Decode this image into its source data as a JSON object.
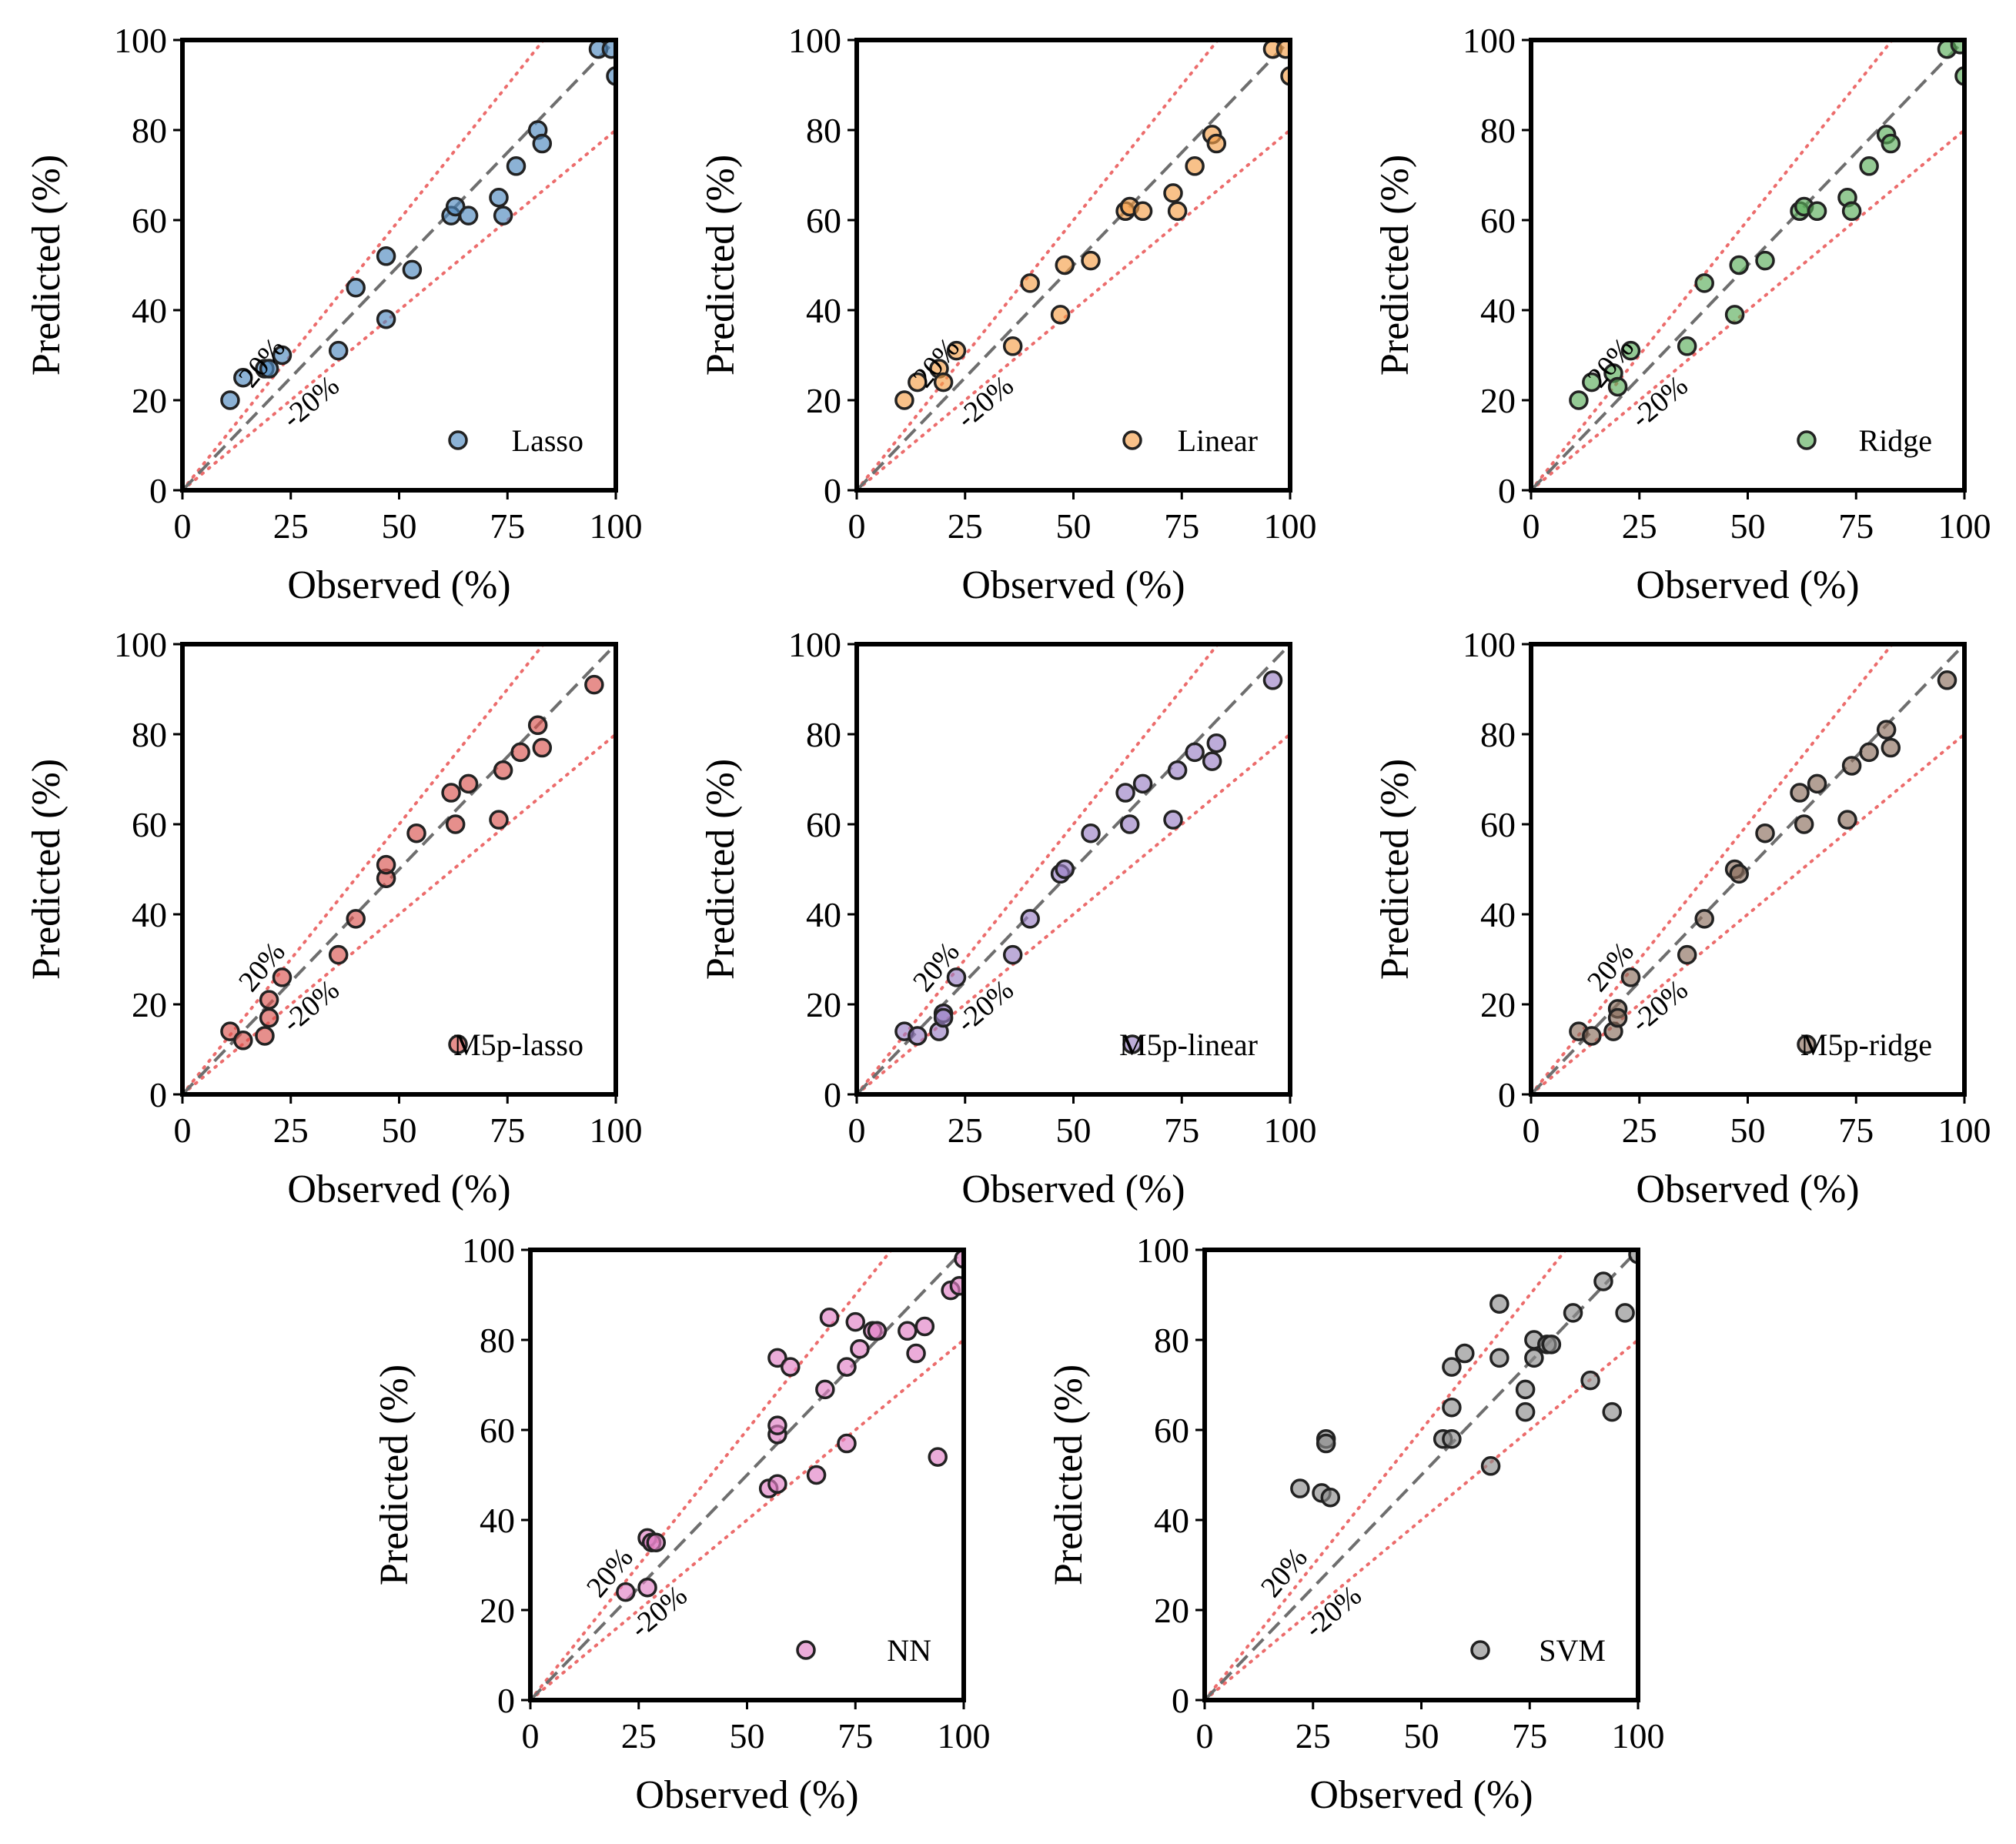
{
  "chart_data": [
    {
      "type": "scatter",
      "model": "Lasso",
      "color": "#4e89bf",
      "xlabel": "Observed (%)",
      "ylabel": "Predicted (%)",
      "xlim": [
        0,
        100
      ],
      "ylim": [
        0,
        100
      ],
      "x_ticks": [
        "0",
        "25",
        "50",
        "75",
        "100"
      ],
      "y_ticks": [
        "0",
        "20",
        "40",
        "60",
        "80",
        "100"
      ],
      "legend": "Lasso",
      "legend_location": "bottom-right",
      "band_labels": [
        "20%",
        "-20%"
      ],
      "points": [
        [
          11,
          20
        ],
        [
          14,
          25
        ],
        [
          19,
          27
        ],
        [
          20,
          27
        ],
        [
          23,
          30
        ],
        [
          36,
          31
        ],
        [
          40,
          45
        ],
        [
          47,
          38
        ],
        [
          47,
          52
        ],
        [
          53,
          49
        ],
        [
          62,
          61
        ],
        [
          63,
          63
        ],
        [
          66,
          61
        ],
        [
          73,
          65
        ],
        [
          74,
          61
        ],
        [
          77,
          72
        ],
        [
          82,
          80
        ],
        [
          83,
          77
        ],
        [
          96,
          98
        ],
        [
          99,
          98
        ],
        [
          100,
          92
        ]
      ]
    },
    {
      "type": "scatter",
      "model": "Linear",
      "color": "#f59f49",
      "xlabel": "Observed (%)",
      "ylabel": "Predicted (%)",
      "xlim": [
        0,
        100
      ],
      "ylim": [
        0,
        100
      ],
      "x_ticks": [
        "0",
        "25",
        "50",
        "75",
        "100"
      ],
      "y_ticks": [
        "0",
        "20",
        "40",
        "60",
        "80",
        "100"
      ],
      "legend": "Linear",
      "legend_location": "bottom-right",
      "band_labels": [
        "20%",
        "-20%"
      ],
      "points": [
        [
          11,
          20
        ],
        [
          14,
          24
        ],
        [
          19,
          27
        ],
        [
          20,
          24
        ],
        [
          23,
          31
        ],
        [
          36,
          32
        ],
        [
          40,
          46
        ],
        [
          47,
          39
        ],
        [
          48,
          50
        ],
        [
          54,
          51
        ],
        [
          62,
          62
        ],
        [
          63,
          63
        ],
        [
          66,
          62
        ],
        [
          73,
          66
        ],
        [
          74,
          62
        ],
        [
          78,
          72
        ],
        [
          82,
          79
        ],
        [
          83,
          77
        ],
        [
          96,
          98
        ],
        [
          99,
          98
        ],
        [
          100,
          92
        ]
      ]
    },
    {
      "type": "scatter",
      "model": "Ridge",
      "color": "#5aad5a",
      "xlabel": "Observed (%)",
      "ylabel": "Predicted (%)",
      "xlim": [
        0,
        100
      ],
      "ylim": [
        0,
        100
      ],
      "x_ticks": [
        "0",
        "25",
        "50",
        "75",
        "100"
      ],
      "y_ticks": [
        "0",
        "20",
        "40",
        "60",
        "80",
        "100"
      ],
      "legend": "Ridge",
      "legend_location": "bottom-right",
      "band_labels": [
        "20%",
        "-20%"
      ],
      "points": [
        [
          11,
          20
        ],
        [
          14,
          24
        ],
        [
          19,
          26
        ],
        [
          20,
          23
        ],
        [
          23,
          31
        ],
        [
          36,
          32
        ],
        [
          40,
          46
        ],
        [
          47,
          39
        ],
        [
          48,
          50
        ],
        [
          54,
          51
        ],
        [
          62,
          62
        ],
        [
          63,
          63
        ],
        [
          66,
          62
        ],
        [
          73,
          65
        ],
        [
          74,
          62
        ],
        [
          78,
          72
        ],
        [
          82,
          79
        ],
        [
          83,
          77
        ],
        [
          96,
          98
        ],
        [
          99,
          99
        ],
        [
          100,
          92
        ]
      ]
    },
    {
      "type": "scatter",
      "model": "M5p-lasso",
      "color": "#d9534f",
      "xlabel": "Observed (%)",
      "ylabel": "Predicted (%)",
      "xlim": [
        0,
        100
      ],
      "ylim": [
        0,
        100
      ],
      "x_ticks": [
        "0",
        "25",
        "50",
        "75",
        "100"
      ],
      "y_ticks": [
        "0",
        "20",
        "40",
        "60",
        "80",
        "100"
      ],
      "legend": "M5p-lasso",
      "legend_location": "bottom-right",
      "band_labels": [
        "20%",
        "-20%"
      ],
      "points": [
        [
          11,
          14
        ],
        [
          14,
          12
        ],
        [
          19,
          13
        ],
        [
          20,
          17
        ],
        [
          20,
          21
        ],
        [
          23,
          26
        ],
        [
          36,
          31
        ],
        [
          40,
          39
        ],
        [
          47,
          48
        ],
        [
          47,
          51
        ],
        [
          54,
          58
        ],
        [
          62,
          67
        ],
        [
          63,
          60
        ],
        [
          66,
          69
        ],
        [
          73,
          61
        ],
        [
          74,
          72
        ],
        [
          78,
          76
        ],
        [
          82,
          82
        ],
        [
          83,
          77
        ],
        [
          95,
          91
        ]
      ]
    },
    {
      "type": "scatter",
      "model": "M5p-linear",
      "color": "#9a7fc4",
      "xlabel": "Observed (%)",
      "ylabel": "Predicted (%)",
      "xlim": [
        0,
        100
      ],
      "ylim": [
        0,
        100
      ],
      "x_ticks": [
        "0",
        "25",
        "50",
        "75",
        "100"
      ],
      "y_ticks": [
        "0",
        "20",
        "40",
        "60",
        "80",
        "100"
      ],
      "legend": "M5p-linear",
      "legend_location": "bottom-right",
      "band_labels": [
        "20%",
        "-20%"
      ],
      "points": [
        [
          11,
          14
        ],
        [
          14,
          13
        ],
        [
          19,
          14
        ],
        [
          20,
          18
        ],
        [
          20,
          17
        ],
        [
          23,
          26
        ],
        [
          36,
          31
        ],
        [
          40,
          39
        ],
        [
          47,
          49
        ],
        [
          48,
          50
        ],
        [
          54,
          58
        ],
        [
          62,
          67
        ],
        [
          63,
          60
        ],
        [
          66,
          69
        ],
        [
          73,
          61
        ],
        [
          74,
          72
        ],
        [
          78,
          76
        ],
        [
          82,
          74
        ],
        [
          83,
          78
        ],
        [
          96,
          92
        ]
      ]
    },
    {
      "type": "scatter",
      "model": "M5p-ridge",
      "color": "#8a6d5c",
      "xlabel": "Observed (%)",
      "ylabel": "Predicted (%)",
      "xlim": [
        0,
        100
      ],
      "ylim": [
        0,
        100
      ],
      "x_ticks": [
        "0",
        "25",
        "50",
        "75",
        "100"
      ],
      "y_ticks": [
        "0",
        "20",
        "40",
        "60",
        "80",
        "100"
      ],
      "legend": "M5p-ridge",
      "legend_location": "bottom-right",
      "band_labels": [
        "20%",
        "-20%"
      ],
      "points": [
        [
          11,
          14
        ],
        [
          14,
          13
        ],
        [
          19,
          14
        ],
        [
          20,
          19
        ],
        [
          20,
          17
        ],
        [
          23,
          26
        ],
        [
          36,
          31
        ],
        [
          40,
          39
        ],
        [
          47,
          50
        ],
        [
          48,
          49
        ],
        [
          54,
          58
        ],
        [
          62,
          67
        ],
        [
          63,
          60
        ],
        [
          66,
          69
        ],
        [
          73,
          61
        ],
        [
          74,
          73
        ],
        [
          78,
          76
        ],
        [
          82,
          81
        ],
        [
          83,
          77
        ],
        [
          96,
          92
        ]
      ]
    },
    {
      "type": "scatter",
      "model": "NN",
      "color": "#e07fc4",
      "xlabel": "Observed (%)",
      "ylabel": "Predicted (%)",
      "xlim": [
        0,
        100
      ],
      "ylim": [
        0,
        100
      ],
      "x_ticks": [
        "0",
        "25",
        "50",
        "75",
        "100"
      ],
      "y_ticks": [
        "0",
        "20",
        "40",
        "60",
        "80",
        "100"
      ],
      "legend": "NN",
      "legend_location": "bottom-right",
      "band_labels": [
        "20%",
        "-20%"
      ],
      "points": [
        [
          22,
          24
        ],
        [
          27,
          25
        ],
        [
          27,
          36
        ],
        [
          28,
          35
        ],
        [
          29,
          35
        ],
        [
          55,
          47
        ],
        [
          57,
          48
        ],
        [
          57,
          59
        ],
        [
          57,
          61
        ],
        [
          57,
          76
        ],
        [
          60,
          74
        ],
        [
          66,
          50
        ],
        [
          68,
          69
        ],
        [
          69,
          85
        ],
        [
          73,
          57
        ],
        [
          73,
          74
        ],
        [
          75,
          84
        ],
        [
          76,
          78
        ],
        [
          79,
          82
        ],
        [
          80,
          82
        ],
        [
          87,
          82
        ],
        [
          89,
          77
        ],
        [
          91,
          83
        ],
        [
          94,
          54
        ],
        [
          97,
          91
        ],
        [
          99,
          92
        ],
        [
          100,
          98
        ]
      ]
    },
    {
      "type": "scatter",
      "model": "SVM",
      "color": "#8c8c8c",
      "xlabel": "Observed (%)",
      "ylabel": "Predicted (%)",
      "xlim": [
        0,
        100
      ],
      "ylim": [
        0,
        100
      ],
      "x_ticks": [
        "0",
        "25",
        "50",
        "75",
        "100"
      ],
      "y_ticks": [
        "0",
        "20",
        "40",
        "60",
        "80",
        "100"
      ],
      "legend": "SVM",
      "legend_location": "bottom-right",
      "band_labels": [
        "20%",
        "-20%"
      ],
      "points": [
        [
          22,
          47
        ],
        [
          27,
          46
        ],
        [
          28,
          58
        ],
        [
          28,
          57
        ],
        [
          29,
          45
        ],
        [
          55,
          58
        ],
        [
          57,
          58
        ],
        [
          57,
          74
        ],
        [
          57,
          65
        ],
        [
          60,
          77
        ],
        [
          66,
          52
        ],
        [
          68,
          76
        ],
        [
          68,
          88
        ],
        [
          74,
          69
        ],
        [
          74,
          64
        ],
        [
          76,
          80
        ],
        [
          76,
          76
        ],
        [
          79,
          79
        ],
        [
          80,
          79
        ],
        [
          85,
          86
        ],
        [
          89,
          71
        ],
        [
          92,
          93
        ],
        [
          94,
          64
        ],
        [
          97,
          86
        ],
        [
          100,
          99
        ]
      ]
    }
  ]
}
